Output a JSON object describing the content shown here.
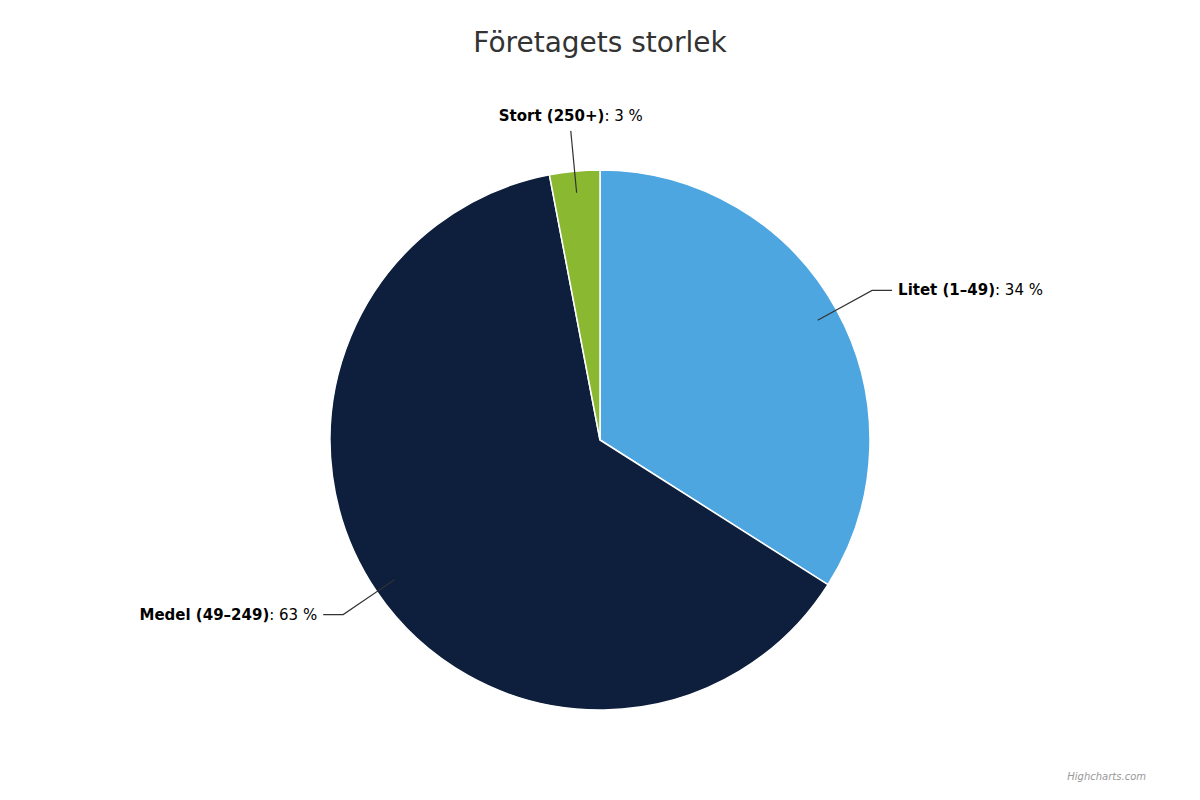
{
  "chart_data": {
    "type": "pie",
    "title": "Företagets storlek",
    "categories": [
      "Litet (1–49)",
      "Medel (49–249)",
      "Stort (250+)"
    ],
    "values": [
      34,
      63,
      3
    ],
    "colors": [
      "#4da6e0",
      "#0d1f3c",
      "#8ab830"
    ],
    "data_labels": true,
    "value_labels": [
      "Litet (1–49): 34 %",
      "Medel (49–249): 63 %",
      "Stort (250+): 3 %"
    ],
    "annotations": [
      "Highcharts.com"
    ]
  }
}
